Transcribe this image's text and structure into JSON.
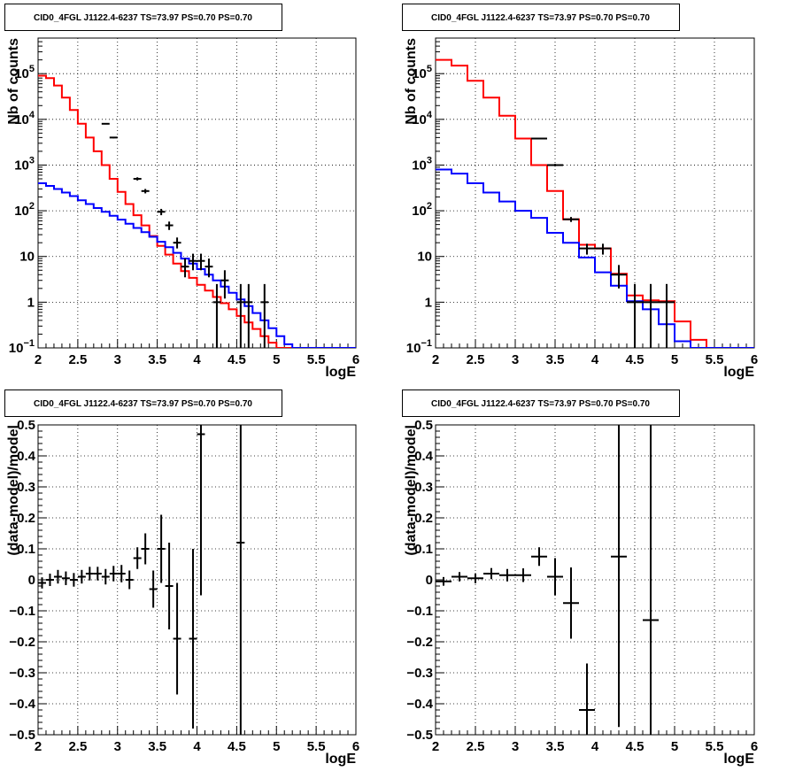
{
  "chart_data": [
    {
      "type": "line",
      "title": "CID0_4FGL J1122.4-6237 TS=73.97 PS=0.70 PS=0.70",
      "xlabel": "logE",
      "ylabel": "Nb of counts",
      "xlim": [
        2,
        6
      ],
      "ylim": [
        0.1,
        600000
      ],
      "yscale": "log",
      "grid": true,
      "x_ticks": [
        "2",
        "2.5",
        "3",
        "3.5",
        "4",
        "4.5",
        "5",
        "5.5",
        "6"
      ],
      "y_ticks": [
        {
          "v": 0.1,
          "base": "10",
          "exp": "−1"
        },
        {
          "v": 1,
          "base": "1",
          "exp": ""
        },
        {
          "v": 10,
          "base": "10",
          "exp": ""
        },
        {
          "v": 100,
          "base": "10",
          "exp": "2"
        },
        {
          "v": 1000,
          "base": "10",
          "exp": "3"
        },
        {
          "v": 10000,
          "base": "10",
          "exp": "4"
        },
        {
          "v": 100000,
          "base": "10",
          "exp": "5"
        }
      ],
      "bin_width": 0.1,
      "series": [
        {
          "role": "model_total",
          "color": "#ff0000",
          "edges_from": 2.0,
          "values": [
            90000,
            80000,
            55000,
            30000,
            16000,
            8000,
            4000,
            2000,
            1000,
            500,
            260,
            140,
            80,
            48,
            28,
            17,
            11,
            7,
            4.8,
            3.4,
            2.4,
            1.8,
            1.3,
            0.95,
            0.7,
            0.5,
            0.36,
            0.26,
            0.18,
            0.13,
            0.1,
            0.1,
            0.1,
            0.1,
            0.1,
            0.1,
            0.1,
            0.1,
            0.1,
            0.1
          ]
        },
        {
          "role": "model_source",
          "color": "#0000ff",
          "edges_from": 2.0,
          "values": [
            400,
            350,
            300,
            250,
            210,
            170,
            140,
            115,
            95,
            78,
            64,
            52,
            42,
            34,
            27,
            21,
            16,
            12,
            9,
            7,
            5.3,
            4,
            3,
            2.2,
            1.6,
            1.15,
            0.82,
            0.58,
            0.4,
            0.27,
            0.18,
            0.12,
            0.1,
            0.1,
            0.1,
            0.1,
            0.1,
            0.1,
            0.1,
            0.1
          ]
        },
        {
          "role": "data",
          "color": "#000000",
          "type": "errorbar",
          "points": [
            {
              "x": 2.85,
              "y": 8000,
              "ylo": 7800,
              "yhi": 8200
            },
            {
              "x": 2.95,
              "y": 4000,
              "ylo": 3850,
              "yhi": 4150
            },
            {
              "x": 3.25,
              "y": 500,
              "ylo": 460,
              "yhi": 540
            },
            {
              "x": 3.35,
              "y": 270,
              "ylo": 240,
              "yhi": 300
            },
            {
              "x": 3.55,
              "y": 95,
              "ylo": 80,
              "yhi": 110
            },
            {
              "x": 3.65,
              "y": 48,
              "ylo": 38,
              "yhi": 58
            },
            {
              "x": 3.75,
              "y": 20,
              "ylo": 15,
              "yhi": 26
            },
            {
              "x": 3.85,
              "y": 6,
              "ylo": 3.5,
              "yhi": 9
            },
            {
              "x": 3.95,
              "y": 8,
              "ylo": 5,
              "yhi": 11.5
            },
            {
              "x": 4.05,
              "y": 8,
              "ylo": 5,
              "yhi": 11.5
            },
            {
              "x": 4.15,
              "y": 6,
              "ylo": 3.5,
              "yhi": 9
            },
            {
              "x": 4.25,
              "y": 1,
              "ylo": 0.1,
              "yhi": 2.5
            },
            {
              "x": 4.35,
              "y": 3,
              "ylo": 1.2,
              "yhi": 5
            },
            {
              "x": 4.55,
              "y": 1,
              "ylo": 0.1,
              "yhi": 2.5
            },
            {
              "x": 4.65,
              "y": 1,
              "ylo": 0.1,
              "yhi": 2.5
            },
            {
              "x": 4.85,
              "y": 1,
              "ylo": 0.1,
              "yhi": 2.5
            }
          ]
        }
      ]
    },
    {
      "type": "line",
      "title": "CID0_4FGL J1122.4-6237 TS=73.97 PS=0.70 PS=0.70",
      "xlabel": "logE",
      "ylabel": "Nb of counts",
      "xlim": [
        2,
        6
      ],
      "ylim": [
        0.1,
        600000
      ],
      "yscale": "log",
      "grid": true,
      "x_ticks": [
        "2",
        "2.5",
        "3",
        "3.5",
        "4",
        "4.5",
        "5",
        "5.5",
        "6"
      ],
      "y_ticks": [
        {
          "v": 0.1,
          "base": "10",
          "exp": "−1"
        },
        {
          "v": 1,
          "base": "1",
          "exp": ""
        },
        {
          "v": 10,
          "base": "10",
          "exp": ""
        },
        {
          "v": 100,
          "base": "10",
          "exp": "2"
        },
        {
          "v": 1000,
          "base": "10",
          "exp": "3"
        },
        {
          "v": 10000,
          "base": "10",
          "exp": "4"
        },
        {
          "v": 100000,
          "base": "10",
          "exp": "5"
        }
      ],
      "bin_width": 0.2,
      "series": [
        {
          "role": "model_total",
          "color": "#ff0000",
          "edges_from": 2.0,
          "values": [
            200000,
            150000,
            70000,
            30000,
            12000,
            3800,
            1000,
            270,
            65,
            18,
            15,
            4.2,
            1.4,
            1.1,
            1.05,
            0.38,
            0.15,
            0.1,
            0.1,
            0.1
          ]
        },
        {
          "role": "model_source",
          "color": "#0000ff",
          "edges_from": 2.0,
          "values": [
            800,
            650,
            400,
            250,
            160,
            100,
            70,
            33,
            20,
            9.5,
            4.5,
            2.3,
            1.05,
            0.7,
            0.33,
            0.14,
            0.1,
            0.1,
            0.1,
            0.1
          ]
        },
        {
          "role": "data",
          "color": "#000000",
          "type": "errorbar",
          "points": [
            {
              "x": 3.3,
              "y": 3800,
              "ylo": 3650,
              "yhi": 3950
            },
            {
              "x": 3.5,
              "y": 1000,
              "ylo": 940,
              "yhi": 1060
            },
            {
              "x": 3.7,
              "y": 65,
              "ylo": 57,
              "yhi": 73
            },
            {
              "x": 3.9,
              "y": 15,
              "ylo": 11,
              "yhi": 19
            },
            {
              "x": 4.1,
              "y": 15,
              "ylo": 11,
              "yhi": 19
            },
            {
              "x": 4.3,
              "y": 4,
              "ylo": 2,
              "yhi": 6.5
            },
            {
              "x": 4.5,
              "y": 1,
              "ylo": 0.1,
              "yhi": 2.5
            },
            {
              "x": 4.7,
              "y": 1,
              "ylo": 0.1,
              "yhi": 2.5
            },
            {
              "x": 4.9,
              "y": 1,
              "ylo": 0.1,
              "yhi": 2.5
            }
          ]
        }
      ]
    },
    {
      "type": "scatter",
      "title": "CID0_4FGL J1122.4-6237 TS=73.97 PS=0.70 PS=0.70",
      "xlabel": "logE",
      "ylabel": "(data-model)/model",
      "xlim": [
        2,
        6
      ],
      "ylim": [
        -0.5,
        0.5
      ],
      "grid": true,
      "x_ticks": [
        "2",
        "2.5",
        "3",
        "3.5",
        "4",
        "4.5",
        "5",
        "5.5",
        "6"
      ],
      "y_ticks": [
        "−0.5",
        "−0.4",
        "−0.3",
        "−0.2",
        "−0.1",
        "0",
        "0.1",
        "0.2",
        "0.3",
        "0.4",
        "0.5"
      ],
      "series": [
        {
          "role": "residual",
          "color": "#000000",
          "type": "errorbar",
          "xerr": 0.05,
          "points": [
            {
              "x": 2.05,
              "y": -0.01,
              "err": 0.018
            },
            {
              "x": 2.15,
              "y": 0.0,
              "err": 0.02
            },
            {
              "x": 2.25,
              "y": 0.01,
              "err": 0.022
            },
            {
              "x": 2.35,
              "y": 0.005,
              "err": 0.022
            },
            {
              "x": 2.45,
              "y": 0.0,
              "err": 0.022
            },
            {
              "x": 2.55,
              "y": 0.01,
              "err": 0.022
            },
            {
              "x": 2.65,
              "y": 0.02,
              "err": 0.022
            },
            {
              "x": 2.75,
              "y": 0.02,
              "err": 0.022
            },
            {
              "x": 2.85,
              "y": 0.01,
              "err": 0.025
            },
            {
              "x": 2.95,
              "y": 0.02,
              "err": 0.025
            },
            {
              "x": 3.05,
              "y": 0.02,
              "err": 0.028
            },
            {
              "x": 3.15,
              "y": 0.0,
              "err": 0.03
            },
            {
              "x": 3.25,
              "y": 0.07,
              "err": 0.035
            },
            {
              "x": 3.35,
              "y": 0.1,
              "err": 0.05
            },
            {
              "x": 3.45,
              "y": -0.03,
              "err": 0.06
            },
            {
              "x": 3.55,
              "y": 0.1,
              "err": 0.11
            },
            {
              "x": 3.65,
              "y": -0.02,
              "err": 0.14
            },
            {
              "x": 3.75,
              "y": -0.19,
              "err": 0.18
            },
            {
              "x": 3.95,
              "y": -0.19,
              "err": 0.29
            },
            {
              "x": 4.05,
              "y": 0.47,
              "err": 0.52
            },
            {
              "x": 4.55,
              "y": 0.12,
              "err": 0.9
            }
          ]
        }
      ]
    },
    {
      "type": "scatter",
      "title": "CID0_4FGL J1122.4-6237 TS=73.97 PS=0.70 PS=0.70",
      "xlabel": "logE",
      "ylabel": "(data-model)/model",
      "xlim": [
        2,
        6
      ],
      "ylim": [
        -0.5,
        0.5
      ],
      "grid": true,
      "x_ticks": [
        "2",
        "2.5",
        "3",
        "3.5",
        "4",
        "4.5",
        "5",
        "5.5",
        "6"
      ],
      "y_ticks": [
        "−0.5",
        "−0.4",
        "−0.3",
        "−0.2",
        "−0.1",
        "0",
        "0.1",
        "0.2",
        "0.3",
        "0.4",
        "0.5"
      ],
      "series": [
        {
          "role": "residual",
          "color": "#000000",
          "type": "errorbar",
          "xerr": 0.1,
          "points": [
            {
              "x": 2.1,
              "y": -0.005,
              "err": 0.014
            },
            {
              "x": 2.3,
              "y": 0.01,
              "err": 0.015
            },
            {
              "x": 2.5,
              "y": 0.005,
              "err": 0.016
            },
            {
              "x": 2.7,
              "y": 0.02,
              "err": 0.018
            },
            {
              "x": 2.9,
              "y": 0.015,
              "err": 0.02
            },
            {
              "x": 3.1,
              "y": 0.015,
              "err": 0.022
            },
            {
              "x": 3.3,
              "y": 0.075,
              "err": 0.03
            },
            {
              "x": 3.5,
              "y": 0.01,
              "err": 0.06
            },
            {
              "x": 3.7,
              "y": -0.075,
              "err": 0.115
            },
            {
              "x": 3.9,
              "y": -0.42,
              "err": 0.15
            },
            {
              "x": 4.3,
              "y": 0.075,
              "err": 0.55
            },
            {
              "x": 4.7,
              "y": -0.13,
              "err": 0.7
            }
          ]
        }
      ]
    }
  ]
}
